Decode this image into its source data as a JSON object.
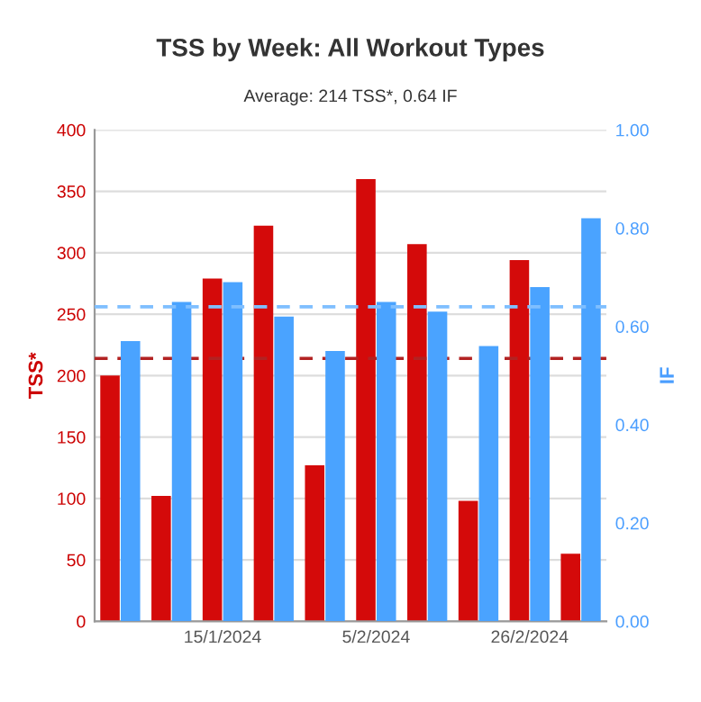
{
  "chart_data": {
    "type": "bar",
    "title": "TSS by Week: All Workout Types",
    "subtitle": "Average: 214 TSS*, 0.64 IF",
    "ylabel": "TSS*",
    "y2label": "IF",
    "categories": [
      null,
      null,
      "15/1/2024",
      null,
      null,
      "5/2/2024",
      null,
      null,
      "26/2/2024",
      null
    ],
    "series": [
      {
        "color": "#d40a0a",
        "values": [
          200,
          102,
          279,
          322,
          127,
          360,
          307,
          98,
          294,
          55
        ]
      },
      {
        "color": "#4aa3ff",
        "axis": "y2",
        "values": [
          0.57,
          0.65,
          0.69,
          0.62,
          0.55,
          0.65,
          0.63,
          0.56,
          0.68,
          0.82
        ]
      }
    ],
    "ylim": [
      0,
      400
    ],
    "yticks": [
      0,
      50,
      100,
      150,
      200,
      250,
      300,
      350,
      400
    ],
    "y2lim": [
      0,
      1
    ],
    "y2ticks": [
      {
        "value": 0,
        "label": "0.00"
      },
      {
        "value": 0.2,
        "label": "0.20"
      },
      {
        "value": 0.4,
        "label": "0.40"
      },
      {
        "value": 0.6,
        "label": "0.60"
      },
      {
        "value": 0.8,
        "label": "0.80"
      },
      {
        "value": 1,
        "label": "1.00"
      }
    ],
    "ref_lines": [
      {
        "axis": "y",
        "value": 214,
        "color": "#b22222",
        "line_style": "dashed"
      },
      {
        "axis": "y2",
        "value": 0.64,
        "color": "#7fbfff",
        "line_style": "dashed"
      }
    ],
    "grid": "y",
    "legend": false
  }
}
